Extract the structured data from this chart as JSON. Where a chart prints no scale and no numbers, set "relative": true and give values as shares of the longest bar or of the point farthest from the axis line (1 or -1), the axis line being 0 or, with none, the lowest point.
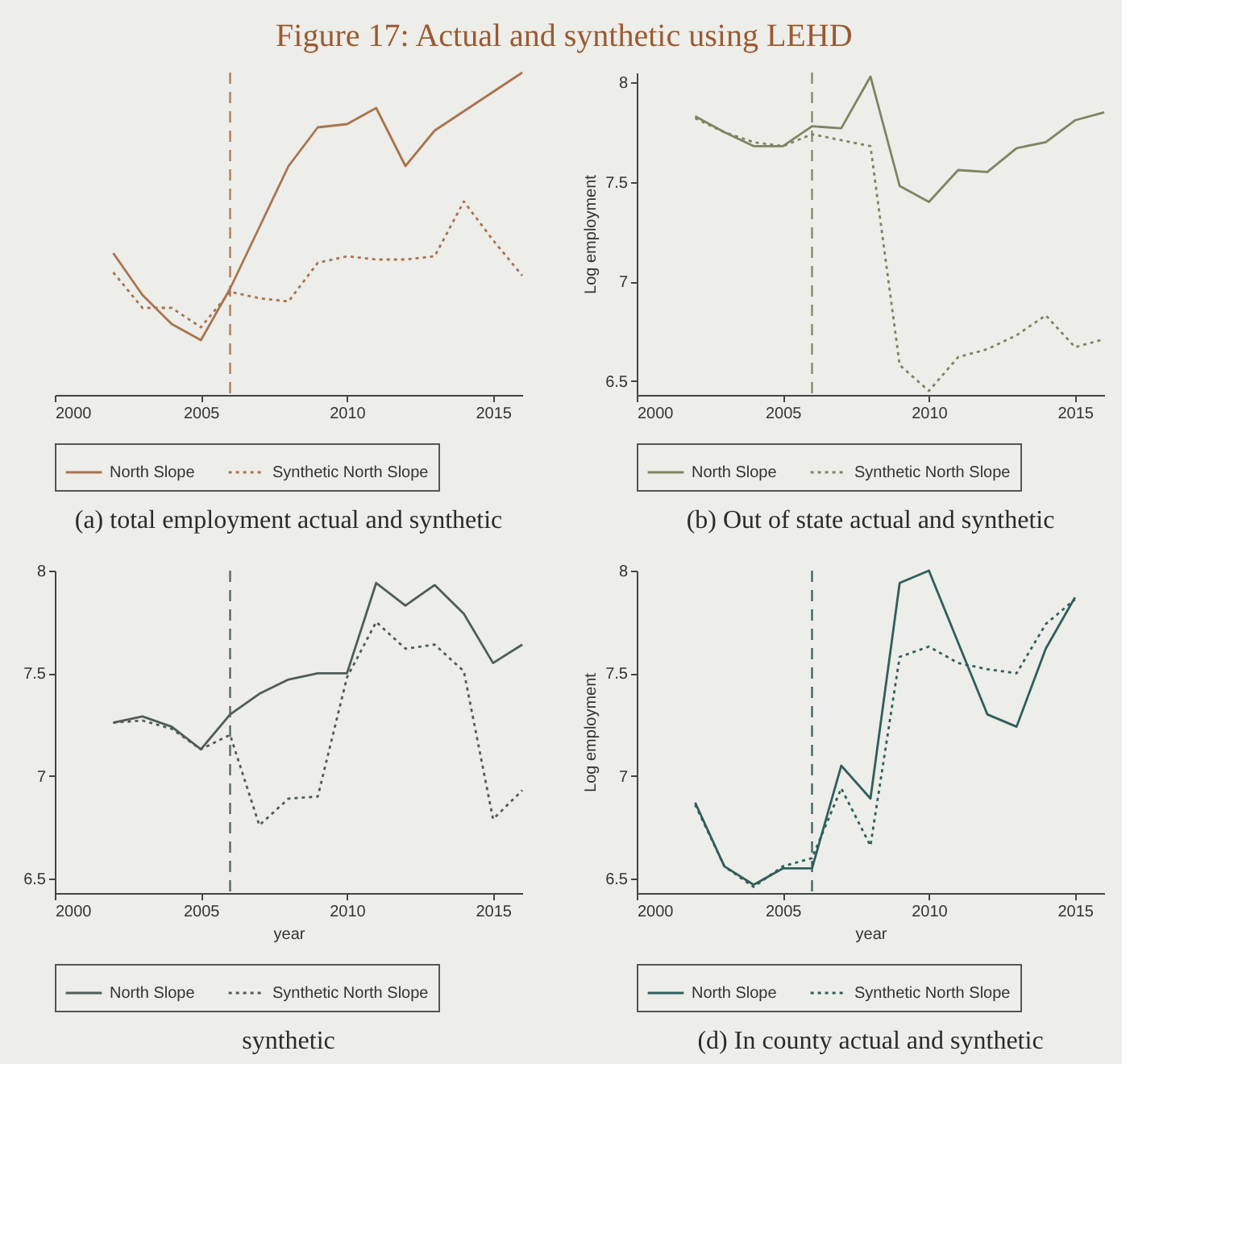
{
  "chart_data": [
    {
      "type": "line",
      "title": "Figure 17: Actual and synthetic using LEHD",
      "annotations": [
        "(a) total employment actual and synthetic"
      ],
      "relative": true,
      "x": [
        2002,
        2003,
        2004,
        2005,
        2006,
        2007,
        2008,
        2009,
        2010,
        2011,
        2012,
        2013,
        2014,
        2015,
        2016
      ],
      "xlim": [
        2000,
        2016
      ],
      "xticks": [
        2000,
        2005,
        2010,
        2015
      ],
      "series": [
        {
          "name": "North Slope",
          "color": "#a9744e",
          "line_style": "solid",
          "values": [
            0.44,
            0.31,
            0.22,
            0.17,
            0.33,
            0.52,
            0.71,
            0.83,
            0.84,
            0.89,
            0.71,
            0.82,
            0.88,
            0.94,
            1
          ]
        },
        {
          "name": "Synthetic North Slope",
          "color": "#a9744e",
          "line_style": "dotted",
          "values": [
            0.38,
            0.27,
            0.27,
            0.21,
            0.32,
            0.3,
            0.29,
            0.41,
            0.43,
            0.42,
            0.42,
            0.43,
            0.6,
            0.48,
            0.37
          ]
        }
      ],
      "ref_lines": [
        {
          "axis": "x",
          "value": 2006,
          "color": "#a9744e",
          "line_style": "dashed"
        }
      ],
      "legend": "bottom",
      "grid": false,
      "marker": "none"
    },
    {
      "type": "line",
      "annotations": [
        "(b) Out of state actual and synthetic"
      ],
      "ylabel": "Log employment",
      "x": [
        2002,
        2003,
        2004,
        2005,
        2006,
        2007,
        2008,
        2009,
        2010,
        2011,
        2012,
        2013,
        2014,
        2015,
        2016
      ],
      "xlim": [
        2000,
        2016
      ],
      "xticks": [
        2000,
        2005,
        2010,
        2015
      ],
      "ylim": [
        6.43,
        8.05
      ],
      "yticks": [
        6.5,
        7,
        7.5,
        8
      ],
      "series": [
        {
          "name": "North Slope",
          "color": "#7c8660",
          "line_style": "solid",
          "values": [
            7.83,
            7.75,
            7.68,
            7.68,
            7.78,
            7.77,
            8.03,
            7.48,
            7.4,
            7.56,
            7.55,
            7.67,
            7.7,
            7.81,
            7.85
          ]
        },
        {
          "name": "Synthetic North Slope",
          "color": "#7c8660",
          "line_style": "dotted",
          "values": [
            7.82,
            7.75,
            7.7,
            7.68,
            7.74,
            7.71,
            7.68,
            6.58,
            6.45,
            6.62,
            6.66,
            6.73,
            6.83,
            6.67,
            6.71
          ]
        }
      ],
      "ref_lines": [
        {
          "axis": "x",
          "value": 2006,
          "color": "#7c8660",
          "line_style": "dashed"
        }
      ],
      "legend": "bottom",
      "grid": false,
      "marker": "none"
    },
    {
      "type": "line",
      "annotations": [
        "synthetic"
      ],
      "xlabel": "year",
      "x": [
        2002,
        2003,
        2004,
        2005,
        2006,
        2007,
        2008,
        2009,
        2010,
        2011,
        2012,
        2013,
        2014,
        2015,
        2016
      ],
      "xlim": [
        2000,
        2016
      ],
      "xticks": [
        2000,
        2005,
        2010,
        2015
      ],
      "ylim": [
        6.43,
        8
      ],
      "yticks": [
        6.5,
        7,
        7.5,
        8
      ],
      "series": [
        {
          "name": "North Slope",
          "color": "#4f5d58",
          "line_style": "solid",
          "values": [
            7.26,
            7.29,
            7.24,
            7.13,
            7.3,
            7.4,
            7.47,
            7.5,
            7.5,
            7.94,
            7.83,
            7.93,
            7.79,
            7.55,
            7.64
          ]
        },
        {
          "name": "Synthetic North Slope",
          "color": "#4f5d58",
          "line_style": "dotted",
          "values": [
            7.26,
            7.27,
            7.23,
            7.13,
            7.2,
            6.76,
            6.89,
            6.9,
            7.48,
            7.75,
            7.62,
            7.64,
            7.51,
            6.79,
            6.93
          ]
        }
      ],
      "ref_lines": [
        {
          "axis": "x",
          "value": 2006,
          "color": "#4f5d58",
          "line_style": "dashed"
        }
      ],
      "legend": "bottom",
      "grid": false,
      "marker": "none"
    },
    {
      "type": "line",
      "annotations": [
        "(d) In county actual and synthetic"
      ],
      "xlabel": "year",
      "ylabel": "Log employment",
      "x": [
        2002,
        2003,
        2004,
        2005,
        2006,
        2007,
        2008,
        2009,
        2010,
        2011,
        2012,
        2013,
        2014,
        2015
      ],
      "xlim": [
        2000,
        2016
      ],
      "xticks": [
        2000,
        2005,
        2010,
        2015
      ],
      "ylim": [
        6.43,
        8
      ],
      "yticks": [
        6.5,
        7,
        7.5,
        8
      ],
      "series": [
        {
          "name": "North Slope",
          "color": "#2f5f5b",
          "line_style": "solid",
          "values": [
            6.87,
            6.56,
            6.47,
            6.55,
            6.55,
            7.05,
            6.89,
            7.94,
            8.0,
            7.65,
            7.3,
            7.24,
            7.62,
            7.87
          ]
        },
        {
          "name": "Synthetic North Slope",
          "color": "#2f5f5b",
          "line_style": "dotted",
          "values": [
            6.86,
            6.56,
            6.46,
            6.56,
            6.6,
            6.94,
            6.66,
            7.58,
            7.63,
            7.55,
            7.52,
            7.5,
            7.74,
            7.86
          ]
        }
      ],
      "ref_lines": [
        {
          "axis": "x",
          "value": 2006,
          "color": "#2f5f5b",
          "line_style": "dashed"
        }
      ],
      "legend": "bottom",
      "grid": false,
      "marker": "none"
    }
  ]
}
